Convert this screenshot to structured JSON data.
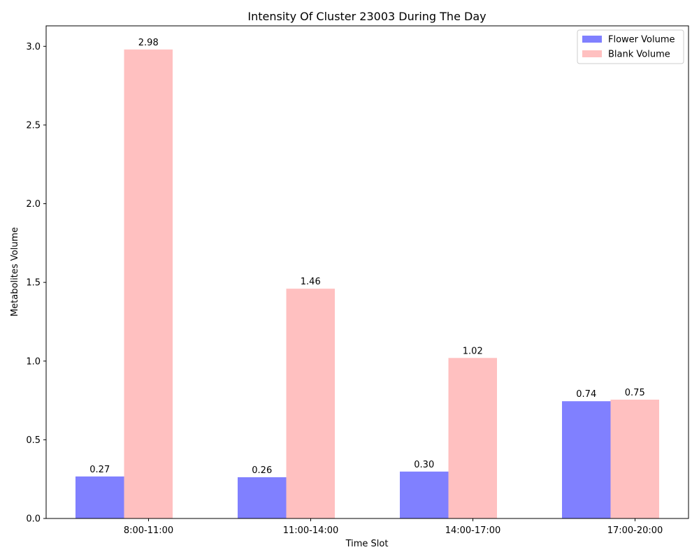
{
  "chart_data": {
    "type": "bar",
    "title": "Intensity Of Cluster 23003 During The Day",
    "xlabel": "Time Slot",
    "ylabel": "Metabolites Volume",
    "categories": [
      "8:00-11:00",
      "11:00-14:00",
      "14:00-17:00",
      "17:00-20:00"
    ],
    "series": [
      {
        "name": "Flower Volume",
        "color": "#8080ff",
        "values": [
          0.267,
          0.262,
          0.298,
          0.745
        ],
        "labels": [
          "0.27",
          "0.26",
          "0.30",
          "0.74"
        ]
      },
      {
        "name": "Blank Volume",
        "color": "#ffc0c0",
        "values": [
          2.98,
          1.46,
          1.02,
          0.755
        ],
        "labels": [
          "2.98",
          "1.46",
          "1.02",
          "0.75"
        ]
      }
    ],
    "ylim": [
      0,
      3.13
    ],
    "yticks": [
      0.0,
      0.5,
      1.0,
      1.5,
      2.0,
      2.5,
      3.0
    ],
    "ytick_labels": [
      "0.0",
      "0.5",
      "1.0",
      "1.5",
      "2.0",
      "2.5",
      "3.0"
    ],
    "legend_position": "top-right",
    "grid": false
  }
}
